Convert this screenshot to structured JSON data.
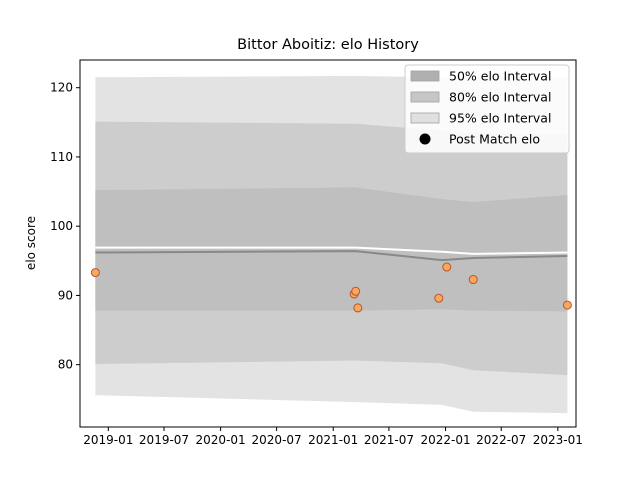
{
  "chart_data": {
    "type": "line",
    "title": "Bittor Aboitiz: elo History",
    "xlabel": "",
    "ylabel": "elo score",
    "xlim": [
      "2018-10-01",
      "2023-03-01"
    ],
    "ylim": [
      71,
      124
    ],
    "x_ticks": [
      "2019-01",
      "2019-07",
      "2020-01",
      "2020-07",
      "2021-01",
      "2021-07",
      "2022-01",
      "2022-07",
      "2023-01"
    ],
    "y_ticks": [
      80,
      90,
      100,
      110,
      120
    ],
    "grid": false,
    "legend": {
      "placement": "top-right",
      "entries": [
        "50% elo Interval",
        "80% elo Interval",
        "95% elo Interval",
        "Post Match elo"
      ]
    },
    "x": [
      "2018-11-20",
      "2021-03-15",
      "2021-12-20",
      "2022-04-01",
      "2023-02-01"
    ],
    "bands": [
      {
        "name": "95% elo Interval",
        "color": "#e3e3e3",
        "upper": [
          121.5,
          121.7,
          121.5,
          121.6,
          121.5
        ],
        "lower": [
          75.6,
          74.6,
          74.2,
          73.2,
          73.0
        ]
      },
      {
        "name": "80% elo Interval",
        "color": "#cdcdcd",
        "upper": [
          115.1,
          114.8,
          113.8,
          113.5,
          113.2
        ],
        "lower": [
          80.1,
          80.6,
          80.2,
          79.2,
          78.5
        ]
      },
      {
        "name": "50% elo Interval",
        "color": "#bfbfbf",
        "upper": [
          105.2,
          105.6,
          103.9,
          103.5,
          104.5
        ],
        "lower": [
          87.8,
          87.8,
          88.0,
          87.8,
          87.7
        ]
      }
    ],
    "lines": [
      {
        "name": "mean",
        "color": "#ffffff",
        "values": [
          96.9,
          96.9,
          96.3,
          96.0,
          96.2
        ]
      },
      {
        "name": "median",
        "color": "#888888",
        "values": [
          96.2,
          96.4,
          95.1,
          95.4,
          95.7
        ]
      }
    ],
    "points": {
      "name": "Post Match elo",
      "fill": "#f5a860",
      "stroke": "#c0502a",
      "data": [
        {
          "x": "2018-11-20",
          "y": 93.3
        },
        {
          "x": "2021-03-10",
          "y": 90.2
        },
        {
          "x": "2021-03-15",
          "y": 90.6
        },
        {
          "x": "2021-03-22",
          "y": 88.2
        },
        {
          "x": "2021-12-10",
          "y": 89.6
        },
        {
          "x": "2022-01-05",
          "y": 94.1
        },
        {
          "x": "2022-04-01",
          "y": 92.3
        },
        {
          "x": "2023-02-01",
          "y": 88.6
        }
      ]
    }
  }
}
